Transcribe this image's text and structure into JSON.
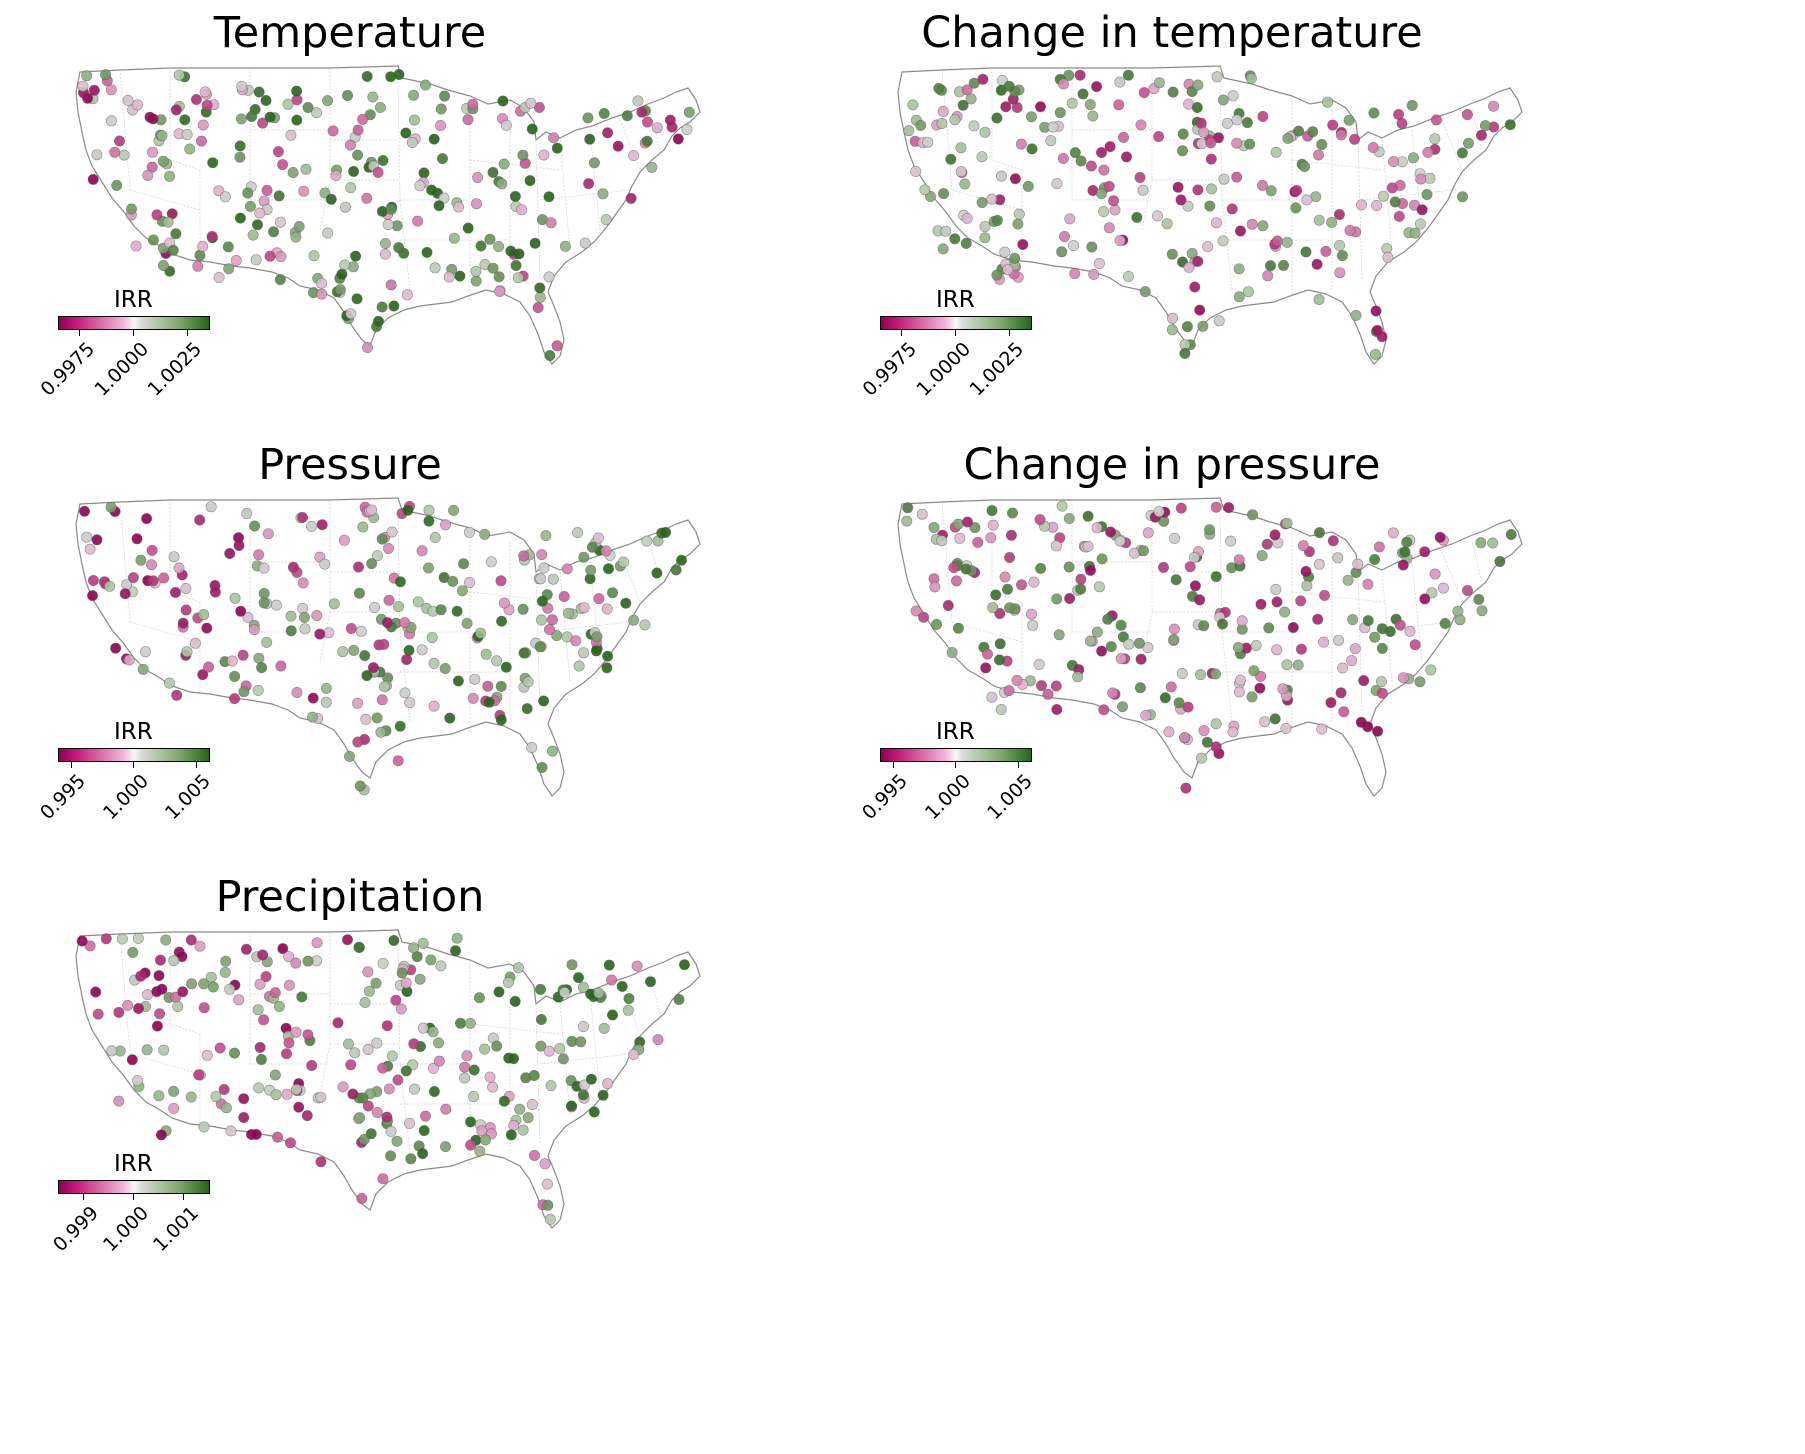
{
  "colors": {
    "low": "#8e0152",
    "mid": "#f7f7f7",
    "neutral_gray": "#c8c8c8",
    "high": "#276419",
    "border": "#8a8a8a"
  },
  "panels": [
    {
      "title": "Temperature",
      "colorbar": {
        "label": "IRR",
        "min": 0.9965,
        "max": 1.0035,
        "ticks": [
          "0.9975",
          "1.0000",
          "1.0025"
        ]
      },
      "seed": 11
    },
    {
      "title": "Change in temperature",
      "colorbar": {
        "label": "IRR",
        "min": 0.9965,
        "max": 1.0035,
        "ticks": [
          "0.9975",
          "1.0000",
          "1.0025"
        ]
      },
      "seed": 23
    },
    {
      "title": "Pressure",
      "colorbar": {
        "label": "IRR",
        "min": 0.994,
        "max": 1.006,
        "ticks": [
          "0.995",
          "1.000",
          "1.005"
        ]
      },
      "seed": 37
    },
    {
      "title": "Change in pressure",
      "colorbar": {
        "label": "IRR",
        "min": 0.994,
        "max": 1.006,
        "ticks": [
          "0.995",
          "1.000",
          "1.005"
        ]
      },
      "seed": 51
    },
    {
      "title": "Precipitation",
      "colorbar": {
        "label": "IRR",
        "min": 0.9985,
        "max": 1.0015,
        "ticks": [
          "0.999",
          "1.000",
          "1.001"
        ]
      },
      "seed": 67
    }
  ]
}
